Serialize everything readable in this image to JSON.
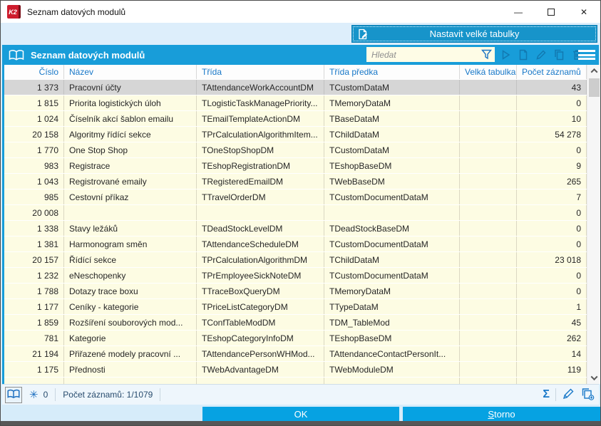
{
  "window": {
    "title": "Seznam datových modulů",
    "logo_text": "K2"
  },
  "top_toolbar": {
    "big_tables_button_label": "Nastavit velké tabulky"
  },
  "panel": {
    "title": "Seznam datových modulů",
    "search_placeholder": "Hledat"
  },
  "table": {
    "columns": [
      {
        "key": "cislo",
        "label": "Číslo",
        "align": "right"
      },
      {
        "key": "nazev",
        "label": "Název",
        "align": "left"
      },
      {
        "key": "trida",
        "label": "Třída",
        "align": "left"
      },
      {
        "key": "trida_predka",
        "label": "Třída předka",
        "align": "left"
      },
      {
        "key": "velka_tabulka",
        "label": "Velká tabulka",
        "align": "left"
      },
      {
        "key": "pocet_zaznamu",
        "label": "Počet záznamů",
        "align": "right"
      }
    ],
    "rows": [
      {
        "cislo": "1 373",
        "nazev": "Pracovní účty",
        "trida": "TAttendanceWorkAccountDM",
        "trida_predka": "TCustomDataM",
        "velka_tabulka": "",
        "pocet_zaznamu": "43",
        "selected": true
      },
      {
        "cislo": "1 815",
        "nazev": "Priorita logistických úloh",
        "trida": "TLogisticTaskManagePriority...",
        "trida_predka": "TMemoryDataM",
        "velka_tabulka": "",
        "pocet_zaznamu": "0"
      },
      {
        "cislo": "1 024",
        "nazev": "Číselník akcí šablon emailu",
        "trida": "TEmailTemplateActionDM",
        "trida_predka": "TBaseDataM",
        "velka_tabulka": "",
        "pocet_zaznamu": "10"
      },
      {
        "cislo": "20 158",
        "nazev": "Algoritmy řídící sekce",
        "trida": "TPrCalculationAlgorithmItem...",
        "trida_predka": "TChildDataM",
        "velka_tabulka": "",
        "pocet_zaznamu": "54 278"
      },
      {
        "cislo": "1 770",
        "nazev": "One Stop Shop",
        "trida": "TOneStopShopDM",
        "trida_predka": "TCustomDataM",
        "velka_tabulka": "",
        "pocet_zaznamu": "0"
      },
      {
        "cislo": "983",
        "nazev": "Registrace",
        "trida": "TEshopRegistrationDM",
        "trida_predka": "TEshopBaseDM",
        "velka_tabulka": "",
        "pocet_zaznamu": "9"
      },
      {
        "cislo": "1 043",
        "nazev": "Registrované emaily",
        "trida": "TRegisteredEmailDM",
        "trida_predka": "TWebBaseDM",
        "velka_tabulka": "",
        "pocet_zaznamu": "265"
      },
      {
        "cislo": "985",
        "nazev": "Cestovní příkaz",
        "trida": "TTravelOrderDM",
        "trida_predka": "TCustomDocumentDataM",
        "velka_tabulka": "",
        "pocet_zaznamu": "7"
      },
      {
        "cislo": "20 008",
        "nazev": "",
        "trida": "",
        "trida_predka": "",
        "velka_tabulka": "",
        "pocet_zaznamu": "0"
      },
      {
        "cislo": "1 338",
        "nazev": "Stavy ležáků",
        "trida": "TDeadStockLevelDM",
        "trida_predka": "TDeadStockBaseDM",
        "velka_tabulka": "",
        "pocet_zaznamu": "0"
      },
      {
        "cislo": "1 381",
        "nazev": "Harmonogram směn",
        "trida": "TAttendanceScheduleDM",
        "trida_predka": "TCustomDocumentDataM",
        "velka_tabulka": "",
        "pocet_zaznamu": "0"
      },
      {
        "cislo": "20 157",
        "nazev": "Řídící sekce",
        "trida": "TPrCalculationAlgorithmDM",
        "trida_predka": "TChildDataM",
        "velka_tabulka": "",
        "pocet_zaznamu": "23 018"
      },
      {
        "cislo": "1 232",
        "nazev": "eNeschopenky",
        "trida": "TPrEmployeeSickNoteDM",
        "trida_predka": "TCustomDocumentDataM",
        "velka_tabulka": "",
        "pocet_zaznamu": "0"
      },
      {
        "cislo": "1 788",
        "nazev": "Dotazy trace boxu",
        "trida": "TTraceBoxQueryDM",
        "trida_predka": "TMemoryDataM",
        "velka_tabulka": "",
        "pocet_zaznamu": "0"
      },
      {
        "cislo": "1 177",
        "nazev": "Ceníky - kategorie",
        "trida": "TPriceListCategoryDM",
        "trida_predka": "TTypeDataM",
        "velka_tabulka": "",
        "pocet_zaznamu": "1"
      },
      {
        "cislo": "1 859",
        "nazev": "Rozšíření souborových mod...",
        "trida": "TConfTableModDM",
        "trida_predka": "TDM_TableMod",
        "velka_tabulka": "",
        "pocet_zaznamu": "45"
      },
      {
        "cislo": "781",
        "nazev": "Kategorie",
        "trida": "TEshopCategoryInfoDM",
        "trida_predka": "TEshopBaseDM",
        "velka_tabulka": "",
        "pocet_zaznamu": "262"
      },
      {
        "cislo": "21 194",
        "nazev": "Přiřazené modely pracovní ...",
        "trida": "TAttendancePersonWHMod...",
        "trida_predka": "TAttendanceContactPersonIt...",
        "velka_tabulka": "",
        "pocet_zaznamu": "14"
      },
      {
        "cislo": "1 175",
        "nazev": "Přednosti",
        "trida": "TWebAdvantageDM",
        "trida_predka": "TWebModuleDM",
        "velka_tabulka": "",
        "pocet_zaznamu": "119"
      }
    ]
  },
  "status_bar": {
    "frozen_count": "0",
    "records_info": "Počet záznamů: 1/1079"
  },
  "footer": {
    "ok_label": "OK",
    "storno_initial": "S",
    "storno_rest": "torno"
  },
  "icons": {
    "minimize": "—",
    "close": "✕",
    "snowflake": "✳",
    "sigma": "Σ"
  },
  "colors": {
    "header_blue": "#189dd9",
    "teal_button": "#1794ca",
    "action_button": "#06a2e2",
    "row_cream": "#fdfce3",
    "selected_row": "#d6d6d6",
    "column_header_text": "#1878c8"
  }
}
